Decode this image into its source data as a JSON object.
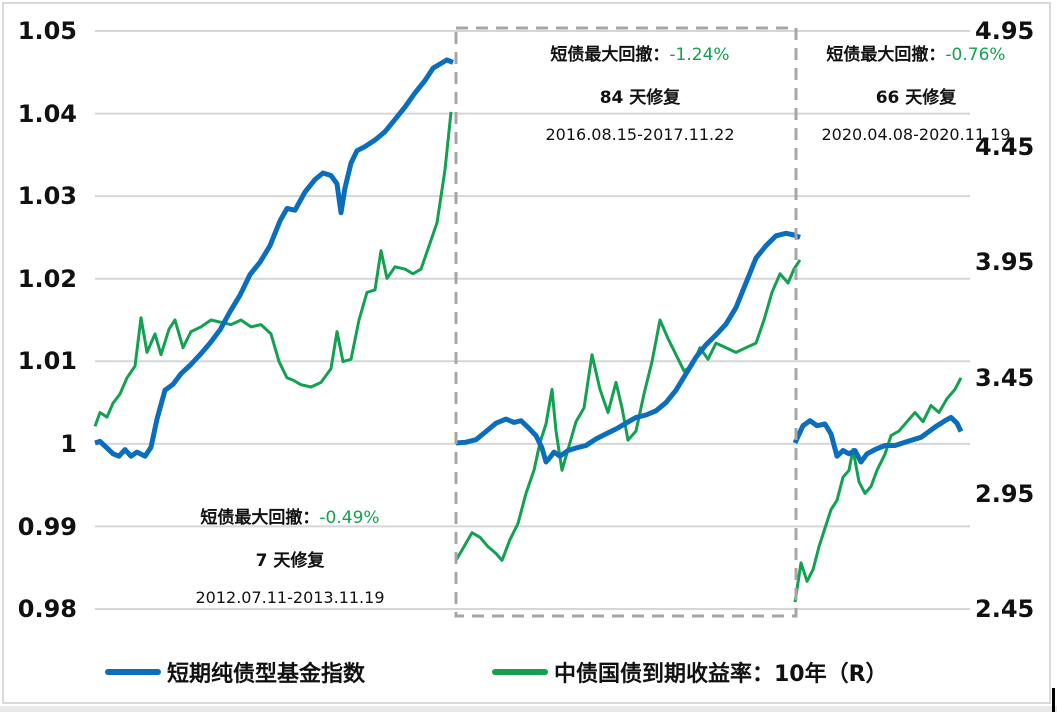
{
  "chart_data": {
    "type": "line",
    "title": "",
    "left_axis": {
      "ticks": [
        "1.05",
        "1.04",
        "1.03",
        "1.02",
        "1.01",
        "1",
        "0.99",
        "0.98"
      ],
      "ylim": [
        0.98,
        1.05
      ]
    },
    "right_axis": {
      "ticks": [
        "4.95",
        "4.45",
        "3.95",
        "3.45",
        "2.95",
        "2.45"
      ],
      "ylim": [
        2.45,
        4.95
      ]
    },
    "grid": true,
    "legend_position": "bottom",
    "series": [
      {
        "name": "短期纯债型基金指数",
        "axis": "left",
        "color": "#0a6ebd"
      },
      {
        "name": "中债国债到期收益率：10年（R）",
        "axis": "right",
        "color": "#12a150"
      }
    ],
    "panels": [
      {
        "period": "2012.07.11-2013.11.19",
        "blue": [
          [
            0,
            1.0001
          ],
          [
            5,
            1.0003
          ],
          [
            12,
            0.9995
          ],
          [
            18,
            0.9988
          ],
          [
            24,
            0.9985
          ],
          [
            30,
            0.9993
          ],
          [
            36,
            0.9985
          ],
          [
            42,
            0.999
          ],
          [
            50,
            0.9985
          ],
          [
            56,
            0.9996
          ],
          [
            62,
            1.003
          ],
          [
            70,
            1.0065
          ],
          [
            78,
            1.0072
          ],
          [
            86,
            1.0085
          ],
          [
            95,
            1.0095
          ],
          [
            105,
            1.0108
          ],
          [
            115,
            1.0122
          ],
          [
            125,
            1.0138
          ],
          [
            135,
            1.016
          ],
          [
            145,
            1.018
          ],
          [
            155,
            1.0205
          ],
          [
            165,
            1.022
          ],
          [
            175,
            1.024
          ],
          [
            185,
            1.027
          ],
          [
            192,
            1.0285
          ],
          [
            200,
            1.0283
          ],
          [
            210,
            1.0305
          ],
          [
            220,
            1.032
          ],
          [
            228,
            1.0328
          ],
          [
            236,
            1.0325
          ],
          [
            242,
            1.0315
          ],
          [
            246,
            1.028
          ],
          [
            250,
            1.031
          ],
          [
            256,
            1.034
          ],
          [
            262,
            1.0355
          ],
          [
            270,
            1.036
          ],
          [
            280,
            1.0368
          ],
          [
            290,
            1.0378
          ],
          [
            300,
            1.0393
          ],
          [
            310,
            1.0408
          ],
          [
            320,
            1.0425
          ],
          [
            330,
            1.044
          ],
          [
            338,
            1.0455
          ],
          [
            345,
            1.046
          ],
          [
            352,
            1.0465
          ],
          [
            358,
            1.0462
          ]
        ],
        "green": [
          [
            0,
            3.24
          ],
          [
            5,
            3.3
          ],
          [
            12,
            3.28
          ],
          [
            18,
            3.34
          ],
          [
            25,
            3.38
          ],
          [
            32,
            3.45
          ],
          [
            40,
            3.5
          ],
          [
            46,
            3.71
          ],
          [
            52,
            3.56
          ],
          [
            60,
            3.64
          ],
          [
            66,
            3.55
          ],
          [
            74,
            3.66
          ],
          [
            80,
            3.7
          ],
          [
            88,
            3.58
          ],
          [
            96,
            3.65
          ],
          [
            106,
            3.67
          ],
          [
            116,
            3.7
          ],
          [
            126,
            3.69
          ],
          [
            136,
            3.68
          ],
          [
            146,
            3.7
          ],
          [
            156,
            3.67
          ],
          [
            166,
            3.68
          ],
          [
            176,
            3.64
          ],
          [
            184,
            3.52
          ],
          [
            192,
            3.45
          ],
          [
            198,
            3.44
          ],
          [
            206,
            3.42
          ],
          [
            216,
            3.41
          ],
          [
            226,
            3.43
          ],
          [
            236,
            3.49
          ],
          [
            242,
            3.65
          ],
          [
            248,
            3.52
          ],
          [
            256,
            3.53
          ],
          [
            264,
            3.7
          ],
          [
            272,
            3.82
          ],
          [
            280,
            3.83
          ],
          [
            286,
            4.0
          ],
          [
            292,
            3.88
          ],
          [
            300,
            3.93
          ],
          [
            310,
            3.92
          ],
          [
            318,
            3.9
          ],
          [
            326,
            3.92
          ],
          [
            334,
            4.02
          ],
          [
            342,
            4.12
          ],
          [
            350,
            4.35
          ],
          [
            356,
            4.6
          ]
        ]
      },
      {
        "period": "2016.08.15-2017.11.22",
        "max_drawdown": "-1.24%",
        "recovery": "84 天修复",
        "blue": [
          [
            0,
            1.0001
          ],
          [
            10,
            1.0002
          ],
          [
            20,
            1.0005
          ],
          [
            30,
            1.0015
          ],
          [
            40,
            1.0025
          ],
          [
            50,
            1.003
          ],
          [
            58,
            1.0026
          ],
          [
            65,
            1.0028
          ],
          [
            72,
            1.002
          ],
          [
            80,
            1.001
          ],
          [
            86,
            0.9995
          ],
          [
            90,
            0.9978
          ],
          [
            93,
            0.9982
          ],
          [
            98,
            0.999
          ],
          [
            104,
            0.9985
          ],
          [
            112,
            0.9992
          ],
          [
            120,
            0.9995
          ],
          [
            130,
            0.9998
          ],
          [
            140,
            1.0006
          ],
          [
            150,
            1.0012
          ],
          [
            160,
            1.0018
          ],
          [
            170,
            1.0025
          ],
          [
            180,
            1.0032
          ],
          [
            190,
            1.0035
          ],
          [
            200,
            1.004
          ],
          [
            210,
            1.005
          ],
          [
            220,
            1.0065
          ],
          [
            230,
            1.0085
          ],
          [
            240,
            1.0105
          ],
          [
            250,
            1.012
          ],
          [
            260,
            1.0132
          ],
          [
            270,
            1.0145
          ],
          [
            280,
            1.0165
          ],
          [
            290,
            1.0195
          ],
          [
            300,
            1.0225
          ],
          [
            310,
            1.024
          ],
          [
            320,
            1.0252
          ],
          [
            330,
            1.0255
          ],
          [
            338,
            1.0253
          ],
          [
            344,
            1.025
          ]
        ],
        "green": [
          [
            0,
            2.66
          ],
          [
            8,
            2.72
          ],
          [
            16,
            2.78
          ],
          [
            24,
            2.76
          ],
          [
            32,
            2.72
          ],
          [
            40,
            2.69
          ],
          [
            46,
            2.66
          ],
          [
            54,
            2.75
          ],
          [
            62,
            2.82
          ],
          [
            70,
            2.95
          ],
          [
            78,
            3.05
          ],
          [
            84,
            3.17
          ],
          [
            90,
            3.25
          ],
          [
            96,
            3.4
          ],
          [
            100,
            3.22
          ],
          [
            106,
            3.05
          ],
          [
            112,
            3.14
          ],
          [
            120,
            3.26
          ],
          [
            128,
            3.32
          ],
          [
            136,
            3.55
          ],
          [
            144,
            3.4
          ],
          [
            152,
            3.3
          ],
          [
            160,
            3.43
          ],
          [
            166,
            3.32
          ],
          [
            172,
            3.18
          ],
          [
            180,
            3.22
          ],
          [
            188,
            3.38
          ],
          [
            196,
            3.52
          ],
          [
            204,
            3.7
          ],
          [
            212,
            3.62
          ],
          [
            220,
            3.55
          ],
          [
            228,
            3.48
          ],
          [
            236,
            3.5
          ],
          [
            244,
            3.58
          ],
          [
            252,
            3.53
          ],
          [
            260,
            3.6
          ],
          [
            270,
            3.58
          ],
          [
            280,
            3.56
          ],
          [
            290,
            3.58
          ],
          [
            300,
            3.6
          ],
          [
            308,
            3.7
          ],
          [
            316,
            3.82
          ],
          [
            324,
            3.9
          ],
          [
            332,
            3.86
          ],
          [
            338,
            3.92
          ],
          [
            344,
            3.96
          ]
        ]
      },
      {
        "period": "2020.04.08-2020.11.19",
        "max_drawdown": "-0.76%",
        "recovery": "66 天修复",
        "blue": [
          [
            0,
            1.0001
          ],
          [
            8,
            1.0022
          ],
          [
            15,
            1.0028
          ],
          [
            22,
            1.0022
          ],
          [
            30,
            1.0024
          ],
          [
            36,
            1.0012
          ],
          [
            42,
            0.9985
          ],
          [
            48,
            0.9992
          ],
          [
            54,
            0.9988
          ],
          [
            60,
            0.9992
          ],
          [
            66,
            0.9978
          ],
          [
            72,
            0.9988
          ],
          [
            80,
            0.9993
          ],
          [
            90,
            0.9998
          ],
          [
            100,
            0.9998
          ],
          [
            110,
            1.0002
          ],
          [
            118,
            1.0005
          ],
          [
            126,
            1.0008
          ],
          [
            134,
            1.0015
          ],
          [
            142,
            1.0022
          ],
          [
            150,
            1.0028
          ],
          [
            156,
            1.0032
          ],
          [
            162,
            1.0025
          ],
          [
            166,
            1.0015
          ]
        ],
        "green": [
          [
            0,
            2.48
          ],
          [
            6,
            2.65
          ],
          [
            12,
            2.57
          ],
          [
            18,
            2.62
          ],
          [
            24,
            2.72
          ],
          [
            30,
            2.8
          ],
          [
            36,
            2.88
          ],
          [
            42,
            2.92
          ],
          [
            48,
            3.02
          ],
          [
            54,
            3.05
          ],
          [
            58,
            3.14
          ],
          [
            64,
            3.0
          ],
          [
            70,
            2.95
          ],
          [
            76,
            2.98
          ],
          [
            82,
            3.05
          ],
          [
            90,
            3.12
          ],
          [
            96,
            3.2
          ],
          [
            104,
            3.22
          ],
          [
            112,
            3.26
          ],
          [
            120,
            3.3
          ],
          [
            128,
            3.26
          ],
          [
            136,
            3.33
          ],
          [
            144,
            3.3
          ],
          [
            152,
            3.36
          ],
          [
            160,
            3.4
          ],
          [
            166,
            3.45
          ]
        ]
      }
    ]
  },
  "annotations": [
    {
      "label": "短债最大回撤：",
      "pct": "-0.49%",
      "recovery": "7 天修复",
      "dates": "2012.07.11-2013.11.19"
    },
    {
      "label": "短债最大回撤：",
      "pct": "-1.24%",
      "recovery": "84 天修复",
      "dates": "2016.08.15-2017.11.22"
    },
    {
      "label": "短债最大回撤：",
      "pct": "-0.76%",
      "recovery": "66 天修复",
      "dates": "2020.04.08-2020.11.19"
    }
  ],
  "legend": {
    "items": [
      {
        "label": "短期纯债型基金指数",
        "color": "#0a6ebd"
      },
      {
        "label": "中债国债到期收益率：10年（R）",
        "color": "#12a150"
      }
    ]
  },
  "colors": {
    "blue": "#0a6ebd",
    "green": "#12a150",
    "grid": "#d6d6d6",
    "dash": "#a6a6a6"
  }
}
